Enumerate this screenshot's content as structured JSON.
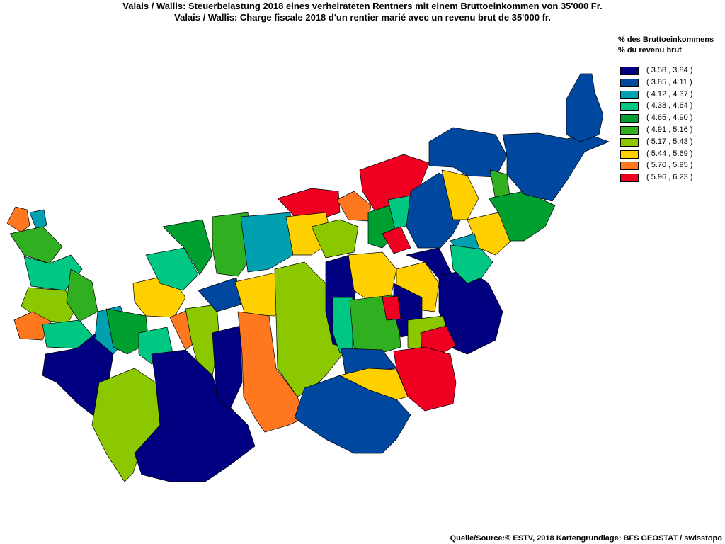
{
  "title_de": "Valais / Wallis: Steuerbelastung 2018 eines verheirateten Rentners mit einem Bruttoeinkommen von 35'000 Fr.",
  "title_fr": "Valais / Wallis: Charge fiscale 2018 d'un rentier marié avec un revenu brut de 35'000 fr.",
  "legend": {
    "heading_de": "% des Bruttoeinkommens",
    "heading_fr": "% du revenu brut",
    "classes": [
      {
        "label": "( 3.58 , 3.84 )",
        "color": "#000080"
      },
      {
        "label": "( 3.85 , 4.11 )",
        "color": "#0047a0"
      },
      {
        "label": "( 4.12 , 4.37 )",
        "color": "#00a0b0"
      },
      {
        "label": "( 4.38 , 4.64 )",
        "color": "#00c882"
      },
      {
        "label": "( 4.65 , 4.90 )",
        "color": "#00a030"
      },
      {
        "label": "( 4.91 , 5.16 )",
        "color": "#30b020"
      },
      {
        "label": "( 5.17 , 5.43 )",
        "color": "#8cc800"
      },
      {
        "label": "( 5.44 , 5.69 )",
        "color": "#ffd000"
      },
      {
        "label": "( 5.70 , 5.95 )",
        "color": "#ff7820"
      },
      {
        "label": "( 5.96 , 6.23 )",
        "color": "#f00020"
      }
    ]
  },
  "source": "Quelle/Source:© ESTV, 2018 Kartengrundlage: BFS GEOSTAT / swisstopo"
}
